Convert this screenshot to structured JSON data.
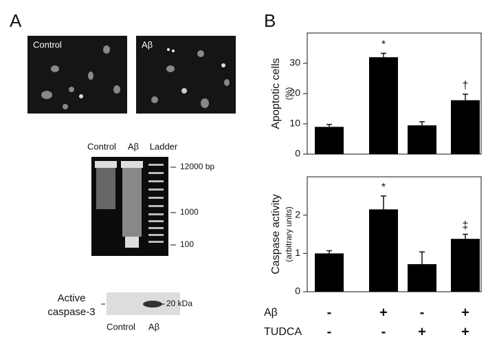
{
  "panel_a": {
    "label": "A",
    "micrographs": [
      "Control",
      "Aβ"
    ],
    "gel": {
      "lanes": [
        "Control",
        "Aβ",
        "Ladder"
      ],
      "markers": [
        "12000 bp",
        "1000",
        "100"
      ]
    },
    "western": {
      "label_lines": [
        "Active",
        "caspase-3"
      ],
      "marker": "20 kDa",
      "lanes": [
        "Control",
        "Aβ"
      ]
    }
  },
  "panel_b": {
    "label": "B"
  },
  "chart_data": [
    {
      "type": "bar",
      "ylabel": "Apoptotic cells",
      "ylabel_unit": "(%)",
      "color": "#000000",
      "values": [
        9,
        32,
        9.5,
        17.8
      ],
      "errors": [
        0.8,
        1.3,
        1.2,
        2
      ],
      "annotations": [
        null,
        "*",
        null,
        "†"
      ],
      "ylim": [
        0,
        40
      ],
      "yticks": [
        0,
        10,
        20,
        30
      ]
    },
    {
      "type": "bar",
      "ylabel": "Caspase activity",
      "ylabel_unit": "(arbitrary units)",
      "color": "#000000",
      "values": [
        1.0,
        2.15,
        0.72,
        1.38
      ],
      "errors": [
        0.07,
        0.35,
        0.32,
        0.12
      ],
      "annotations": [
        null,
        "*",
        null,
        "‡"
      ],
      "ylim": [
        0,
        3
      ],
      "yticks": [
        0,
        1,
        2
      ]
    }
  ],
  "conditions": [
    {
      "name": "Aβ",
      "values": [
        "-",
        "+",
        "-",
        "+"
      ]
    },
    {
      "name": "TUDCA",
      "values": [
        "-",
        "-",
        "+",
        "+"
      ]
    }
  ]
}
